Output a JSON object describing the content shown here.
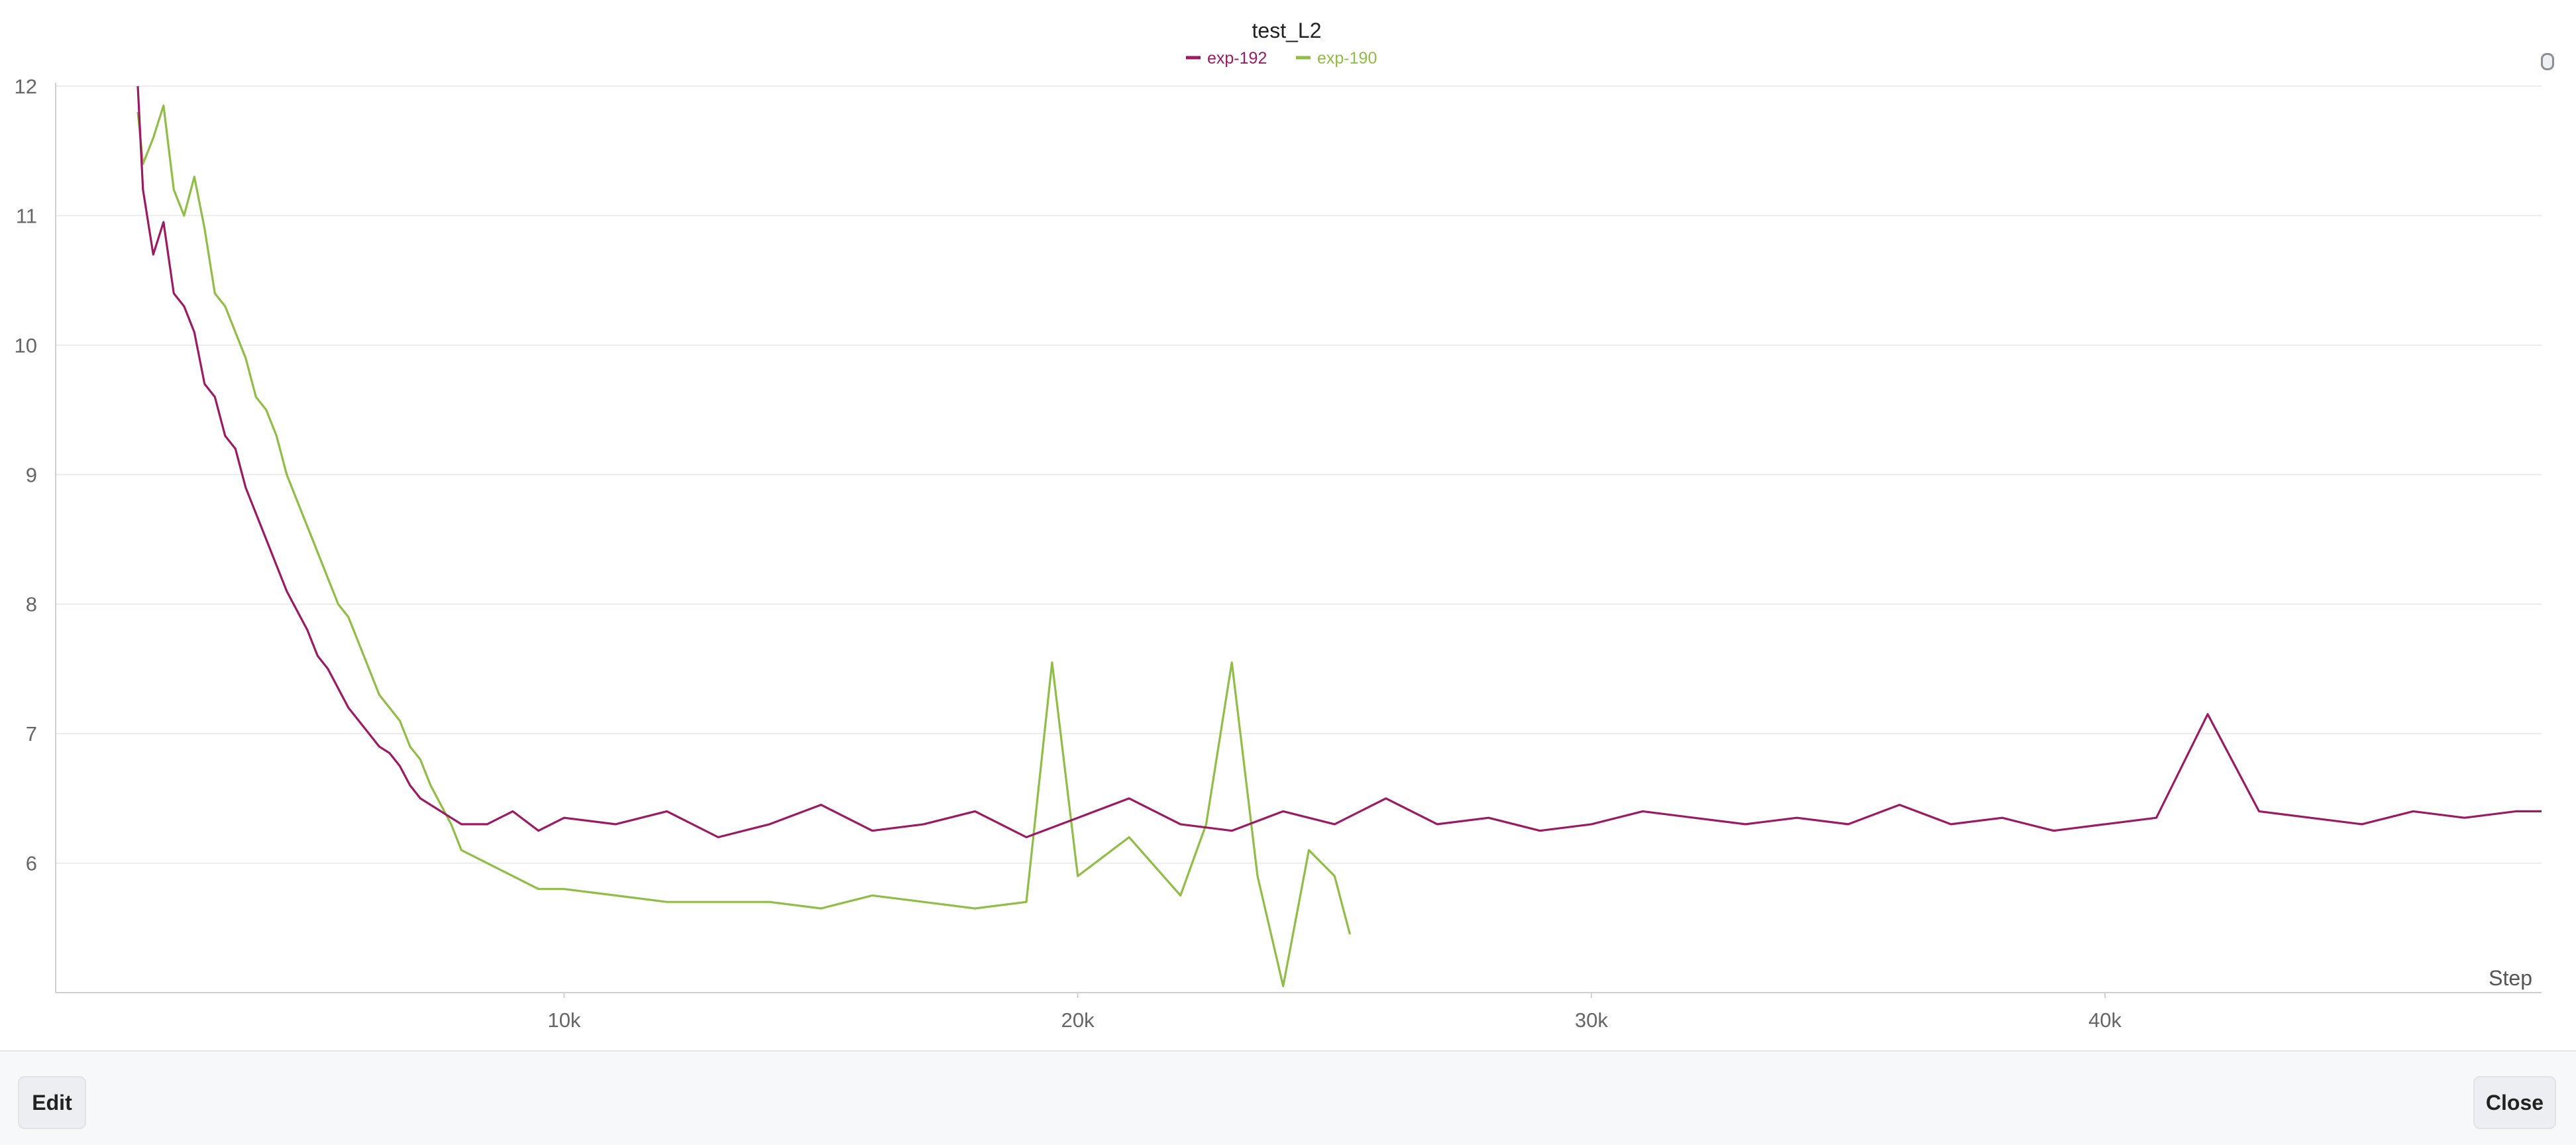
{
  "chart_data": {
    "type": "line",
    "title": "test_L2",
    "xlabel": "Step",
    "ylabel": "",
    "xlim": [
      100,
      48500
    ],
    "ylim": [
      5.0,
      12.0
    ],
    "xticks": [
      10000,
      20000,
      30000,
      40000
    ],
    "xtick_labels": [
      "10k",
      "20k",
      "30k",
      "40k"
    ],
    "yticks": [
      6,
      7,
      8,
      9,
      10,
      11,
      12
    ],
    "ytick_labels": [
      "6",
      "7",
      "8",
      "9",
      "10",
      "11",
      "12"
    ],
    "grid": true,
    "legend_position": "top-center",
    "series": [
      {
        "name": "exp-192",
        "color": "#9b1b63",
        "x": [
          1700,
          1800,
          2000,
          2200,
          2400,
          2600,
          2800,
          3000,
          3200,
          3400,
          3600,
          3800,
          4000,
          4200,
          4400,
          4600,
          4800,
          5000,
          5200,
          5400,
          5600,
          5800,
          6000,
          6200,
          6400,
          6600,
          6800,
          7000,
          7200,
          7400,
          7600,
          7800,
          8000,
          8500,
          9000,
          9500,
          10000,
          11000,
          12000,
          13000,
          14000,
          15000,
          16000,
          17000,
          18000,
          19000,
          20000,
          21000,
          22000,
          23000,
          24000,
          25000,
          26000,
          27000,
          28000,
          29000,
          30000,
          31000,
          32000,
          33000,
          34000,
          35000,
          36000,
          37000,
          38000,
          39000,
          40000,
          41000,
          42000,
          43000,
          44000,
          45000,
          46000,
          47000,
          48000,
          48500
        ],
        "y": [
          12.0,
          11.2,
          10.7,
          10.95,
          10.4,
          10.3,
          10.1,
          9.7,
          9.6,
          9.3,
          9.2,
          8.9,
          8.7,
          8.5,
          8.3,
          8.1,
          7.95,
          7.8,
          7.6,
          7.5,
          7.35,
          7.2,
          7.1,
          7.0,
          6.9,
          6.85,
          6.75,
          6.6,
          6.5,
          6.45,
          6.4,
          6.35,
          6.3,
          6.3,
          6.4,
          6.25,
          6.35,
          6.3,
          6.4,
          6.2,
          6.3,
          6.45,
          6.25,
          6.3,
          6.4,
          6.2,
          6.35,
          6.5,
          6.3,
          6.25,
          6.4,
          6.3,
          6.5,
          6.3,
          6.35,
          6.25,
          6.3,
          6.4,
          6.35,
          6.3,
          6.35,
          6.3,
          6.45,
          6.3,
          6.35,
          6.25,
          6.3,
          6.35,
          7.15,
          6.4,
          6.35,
          6.3,
          6.4,
          6.35,
          6.4,
          6.4
        ]
      },
      {
        "name": "exp-190",
        "color": "#8fbd45",
        "x": [
          1700,
          1800,
          2000,
          2200,
          2400,
          2600,
          2800,
          3000,
          3200,
          3400,
          3600,
          3800,
          4000,
          4200,
          4400,
          4600,
          4800,
          5000,
          5200,
          5400,
          5600,
          5800,
          6000,
          6200,
          6400,
          6600,
          6800,
          7000,
          7200,
          7400,
          7600,
          7800,
          8000,
          8500,
          9000,
          9500,
          10000,
          11000,
          12000,
          13000,
          14000,
          15000,
          16000,
          17000,
          18000,
          19000,
          19500,
          20000,
          21000,
          22000,
          22500,
          23000,
          23500,
          24000,
          24500,
          25000,
          25300
        ],
        "y": [
          11.8,
          11.4,
          11.6,
          11.85,
          11.2,
          11.0,
          11.3,
          10.9,
          10.4,
          10.3,
          10.1,
          9.9,
          9.6,
          9.5,
          9.3,
          9.0,
          8.8,
          8.6,
          8.4,
          8.2,
          8.0,
          7.9,
          7.7,
          7.5,
          7.3,
          7.2,
          7.1,
          6.9,
          6.8,
          6.6,
          6.45,
          6.3,
          6.1,
          6.0,
          5.9,
          5.8,
          5.8,
          5.75,
          5.7,
          5.7,
          5.7,
          5.65,
          5.75,
          5.7,
          5.65,
          5.7,
          7.55,
          5.9,
          6.2,
          5.75,
          6.3,
          7.55,
          5.9,
          5.05,
          6.1,
          5.9,
          5.45
        ]
      }
    ]
  },
  "footer": {
    "edit_label": "Edit",
    "close_label": "Close"
  }
}
